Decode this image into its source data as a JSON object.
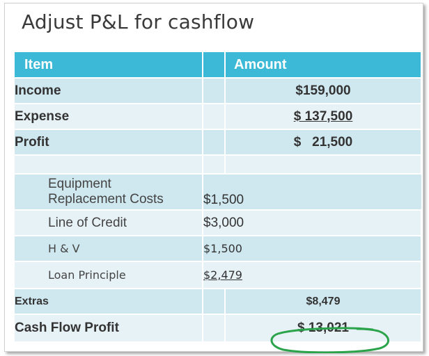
{
  "title": "Adjust P&L for cashflow",
  "table": {
    "header": {
      "item": "Item",
      "amount": "Amount"
    },
    "summary_rows": [
      {
        "label": "Income",
        "amount": "$159,000"
      },
      {
        "label": "Expense",
        "amount": "$ 137,500"
      },
      {
        "label": "Profit",
        "amount": "$   21,500"
      }
    ],
    "detail_rows": [
      {
        "label_line1": "Equipment",
        "label_line2": "Replacement Costs",
        "amount": "$1,500"
      },
      {
        "label": "Line of Credit",
        "amount": "$3,000"
      },
      {
        "label": "H & V",
        "amount": "$1,500"
      },
      {
        "label": "Loan Principle",
        "amount": "$2,479"
      }
    ],
    "extras": {
      "label": "Extras",
      "amount": "$8,479"
    },
    "cash_flow": {
      "label": "Cash Flow Profit",
      "amount": "$ 13,021"
    }
  },
  "colors": {
    "header": "#3bb9d6",
    "row_dark": "#cfe7ef",
    "row_light": "#e7f2f7",
    "highlight_circle": "#2aa34a"
  }
}
